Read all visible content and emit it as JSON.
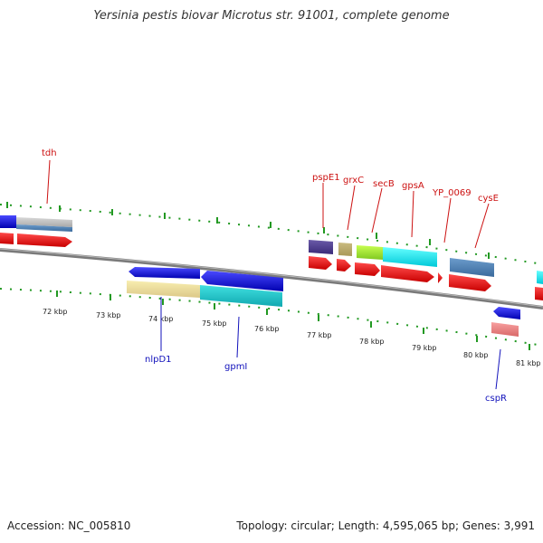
{
  "title": "Yersinia pestis biovar Microtus str. 91001, complete genome",
  "footer": {
    "accession": "Accession: NC_005810",
    "stats": "Topology: circular; Length: 4,595,065 bp; Genes: 3,991"
  },
  "colors": {
    "label_forward": "#cc1111",
    "label_reverse": "#1111bb",
    "backbone": "#777777",
    "tick": "#229922"
  },
  "kbp_ticks": [
    "72 kbp",
    "73 kbp",
    "74 kbp",
    "75 kbp",
    "76 kbp",
    "77 kbp",
    "78 kbp",
    "79 kbp",
    "80 kbp",
    "81 kbp"
  ],
  "forward_labels": [
    "tdh",
    "pspE1",
    "grxC",
    "secB",
    "gpsA",
    "YP_0069",
    "cysE"
  ],
  "reverse_labels": [
    "nlpD1",
    "gpmI",
    "cspR"
  ]
}
